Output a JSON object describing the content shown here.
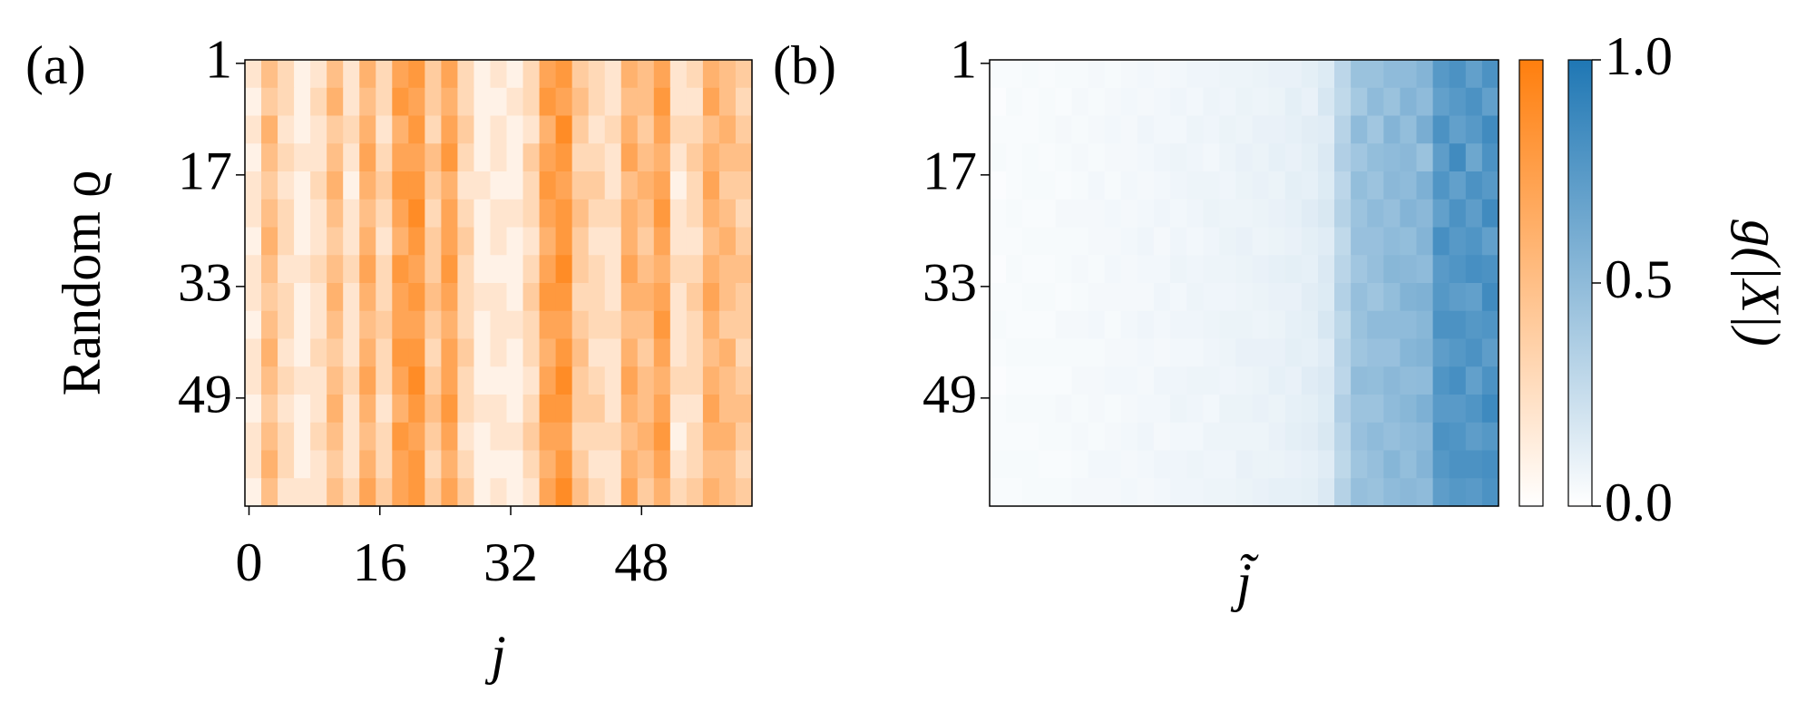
{
  "chart_data": [
    {
      "type": "heatmap",
      "panel_label": "(a)",
      "xlabel": "j",
      "ylabel": "Random ϱ",
      "xlim": [
        -0.5,
        61.5
      ],
      "ylim": [
        0.5,
        64.5
      ],
      "xticks": [
        0,
        16,
        32,
        48
      ],
      "yticks": [
        1,
        17,
        33,
        49
      ],
      "clim": [
        0,
        1
      ],
      "colors": [
        "#ffffff",
        "#ff7f0e"
      ],
      "values": [
        [
          0.2,
          0.5,
          0.3,
          0.1,
          0.2,
          0.5,
          0.2,
          0.6,
          0.3,
          0.7,
          0.8,
          0.4,
          0.7,
          0.3,
          0.1,
          0.2,
          0.1,
          0.3,
          0.7,
          0.8,
          0.4,
          0.3,
          0.2,
          0.6,
          0.5,
          0.7,
          0.2,
          0.3,
          0.6,
          0.5,
          0.4
        ],
        [
          0.1,
          0.4,
          0.3,
          0.1,
          0.3,
          0.6,
          0.2,
          0.5,
          0.3,
          0.8,
          0.7,
          0.4,
          0.6,
          0.3,
          0.1,
          0.1,
          0.2,
          0.3,
          0.8,
          0.7,
          0.5,
          0.3,
          0.2,
          0.5,
          0.5,
          0.8,
          0.2,
          0.2,
          0.7,
          0.5,
          0.3
        ],
        [
          0.2,
          0.6,
          0.2,
          0.1,
          0.2,
          0.4,
          0.3,
          0.6,
          0.2,
          0.6,
          0.8,
          0.3,
          0.7,
          0.4,
          0.1,
          0.2,
          0.1,
          0.2,
          0.6,
          0.9,
          0.4,
          0.2,
          0.3,
          0.6,
          0.4,
          0.7,
          0.3,
          0.3,
          0.5,
          0.6,
          0.4
        ],
        [
          0.1,
          0.5,
          0.3,
          0.2,
          0.2,
          0.5,
          0.2,
          0.7,
          0.3,
          0.7,
          0.7,
          0.5,
          0.8,
          0.3,
          0.1,
          0.2,
          0.1,
          0.4,
          0.7,
          0.8,
          0.3,
          0.3,
          0.2,
          0.7,
          0.5,
          0.6,
          0.2,
          0.4,
          0.6,
          0.5,
          0.5
        ],
        [
          0.2,
          0.4,
          0.2,
          0.1,
          0.3,
          0.6,
          0.1,
          0.6,
          0.4,
          0.8,
          0.8,
          0.4,
          0.6,
          0.2,
          0.2,
          0.1,
          0.1,
          0.3,
          0.8,
          0.7,
          0.4,
          0.4,
          0.2,
          0.5,
          0.6,
          0.7,
          0.1,
          0.3,
          0.7,
          0.4,
          0.4
        ],
        [
          0.2,
          0.5,
          0.3,
          0.1,
          0.2,
          0.5,
          0.2,
          0.5,
          0.3,
          0.7,
          0.9,
          0.3,
          0.7,
          0.3,
          0.1,
          0.2,
          0.2,
          0.3,
          0.7,
          0.8,
          0.5,
          0.3,
          0.3,
          0.6,
          0.5,
          0.8,
          0.2,
          0.3,
          0.6,
          0.5,
          0.3
        ],
        [
          0.1,
          0.6,
          0.3,
          0.1,
          0.2,
          0.4,
          0.2,
          0.6,
          0.2,
          0.6,
          0.8,
          0.4,
          0.7,
          0.4,
          0.1,
          0.2,
          0.1,
          0.2,
          0.6,
          0.8,
          0.4,
          0.2,
          0.2,
          0.6,
          0.4,
          0.7,
          0.2,
          0.2,
          0.5,
          0.6,
          0.4
        ],
        [
          0.2,
          0.5,
          0.2,
          0.2,
          0.3,
          0.5,
          0.3,
          0.7,
          0.3,
          0.8,
          0.7,
          0.4,
          0.8,
          0.3,
          0.1,
          0.1,
          0.1,
          0.3,
          0.7,
          0.9,
          0.4,
          0.3,
          0.2,
          0.7,
          0.5,
          0.6,
          0.3,
          0.3,
          0.6,
          0.5,
          0.5
        ],
        [
          0.2,
          0.4,
          0.3,
          0.1,
          0.2,
          0.6,
          0.2,
          0.6,
          0.3,
          0.7,
          0.8,
          0.5,
          0.7,
          0.3,
          0.2,
          0.2,
          0.1,
          0.4,
          0.8,
          0.8,
          0.3,
          0.3,
          0.2,
          0.6,
          0.6,
          0.7,
          0.2,
          0.4,
          0.7,
          0.5,
          0.4
        ],
        [
          0.1,
          0.5,
          0.3,
          0.1,
          0.2,
          0.5,
          0.2,
          0.5,
          0.4,
          0.7,
          0.7,
          0.4,
          0.6,
          0.3,
          0.1,
          0.2,
          0.2,
          0.3,
          0.7,
          0.7,
          0.4,
          0.3,
          0.3,
          0.5,
          0.5,
          0.8,
          0.2,
          0.3,
          0.6,
          0.4,
          0.4
        ],
        [
          0.2,
          0.6,
          0.2,
          0.1,
          0.3,
          0.4,
          0.2,
          0.6,
          0.3,
          0.8,
          0.8,
          0.3,
          0.7,
          0.4,
          0.1,
          0.2,
          0.1,
          0.3,
          0.6,
          0.8,
          0.5,
          0.2,
          0.2,
          0.6,
          0.4,
          0.7,
          0.2,
          0.3,
          0.5,
          0.6,
          0.3
        ],
        [
          0.2,
          0.5,
          0.3,
          0.2,
          0.2,
          0.5,
          0.3,
          0.7,
          0.3,
          0.7,
          0.9,
          0.4,
          0.7,
          0.3,
          0.1,
          0.1,
          0.1,
          0.2,
          0.7,
          0.9,
          0.4,
          0.3,
          0.2,
          0.7,
          0.5,
          0.6,
          0.3,
          0.3,
          0.6,
          0.5,
          0.4
        ],
        [
          0.1,
          0.4,
          0.2,
          0.1,
          0.2,
          0.6,
          0.2,
          0.6,
          0.2,
          0.6,
          0.8,
          0.5,
          0.8,
          0.3,
          0.2,
          0.2,
          0.1,
          0.3,
          0.8,
          0.8,
          0.4,
          0.4,
          0.2,
          0.6,
          0.5,
          0.7,
          0.2,
          0.2,
          0.7,
          0.5,
          0.5
        ],
        [
          0.2,
          0.5,
          0.3,
          0.1,
          0.3,
          0.5,
          0.2,
          0.5,
          0.3,
          0.8,
          0.7,
          0.4,
          0.7,
          0.2,
          0.1,
          0.2,
          0.2,
          0.4,
          0.7,
          0.7,
          0.3,
          0.3,
          0.3,
          0.5,
          0.6,
          0.8,
          0.1,
          0.3,
          0.6,
          0.6,
          0.4
        ],
        [
          0.2,
          0.6,
          0.3,
          0.1,
          0.2,
          0.4,
          0.2,
          0.6,
          0.3,
          0.7,
          0.8,
          0.3,
          0.6,
          0.3,
          0.1,
          0.1,
          0.1,
          0.3,
          0.6,
          0.8,
          0.4,
          0.2,
          0.2,
          0.6,
          0.5,
          0.7,
          0.2,
          0.3,
          0.5,
          0.5,
          0.3
        ],
        [
          0.1,
          0.5,
          0.2,
          0.2,
          0.2,
          0.5,
          0.3,
          0.7,
          0.4,
          0.7,
          0.8,
          0.4,
          0.7,
          0.4,
          0.1,
          0.2,
          0.1,
          0.2,
          0.7,
          0.9,
          0.5,
          0.3,
          0.2,
          0.7,
          0.4,
          0.6,
          0.3,
          0.4,
          0.6,
          0.5,
          0.4
        ]
      ],
      "colorbar": {
        "colors": [
          "#ffffff",
          "#ff7f0e"
        ],
        "clim": [
          0,
          1
        ]
      }
    },
    {
      "type": "heatmap",
      "panel_label": "(b)",
      "xlabel": "j̃",
      "xlim": [
        -0.5,
        61.5
      ],
      "ylim": [
        0.5,
        64.5
      ],
      "yticks": [
        1,
        17,
        33,
        49
      ],
      "clim": [
        0,
        1
      ],
      "colors": [
        "#ffffff",
        "#1f77b4"
      ],
      "values": [
        [
          0.03,
          0.03,
          0.04,
          0.03,
          0.04,
          0.04,
          0.05,
          0.04,
          0.05,
          0.06,
          0.05,
          0.06,
          0.07,
          0.07,
          0.08,
          0.08,
          0.09,
          0.1,
          0.1,
          0.12,
          0.15,
          0.3,
          0.45,
          0.45,
          0.5,
          0.5,
          0.55,
          0.75,
          0.8,
          0.7,
          0.8
        ],
        [
          0.02,
          0.04,
          0.03,
          0.04,
          0.03,
          0.05,
          0.04,
          0.05,
          0.06,
          0.05,
          0.06,
          0.07,
          0.06,
          0.08,
          0.07,
          0.09,
          0.08,
          0.09,
          0.12,
          0.1,
          0.18,
          0.28,
          0.4,
          0.5,
          0.45,
          0.55,
          0.5,
          0.7,
          0.75,
          0.8,
          0.7
        ],
        [
          0.03,
          0.03,
          0.03,
          0.04,
          0.05,
          0.04,
          0.05,
          0.06,
          0.05,
          0.07,
          0.06,
          0.06,
          0.08,
          0.07,
          0.09,
          0.08,
          0.1,
          0.1,
          0.11,
          0.13,
          0.14,
          0.32,
          0.5,
          0.42,
          0.55,
          0.48,
          0.6,
          0.8,
          0.7,
          0.75,
          0.85
        ],
        [
          0.04,
          0.03,
          0.04,
          0.03,
          0.04,
          0.05,
          0.04,
          0.05,
          0.05,
          0.06,
          0.07,
          0.08,
          0.07,
          0.06,
          0.08,
          0.1,
          0.09,
          0.11,
          0.1,
          0.12,
          0.16,
          0.35,
          0.42,
          0.48,
          0.5,
          0.52,
          0.45,
          0.72,
          0.85,
          0.65,
          0.8
        ],
        [
          0.02,
          0.03,
          0.04,
          0.04,
          0.03,
          0.04,
          0.06,
          0.04,
          0.06,
          0.05,
          0.06,
          0.07,
          0.08,
          0.08,
          0.07,
          0.09,
          0.1,
          0.09,
          0.12,
          0.11,
          0.15,
          0.3,
          0.48,
          0.44,
          0.52,
          0.5,
          0.58,
          0.78,
          0.7,
          0.8,
          0.75
        ],
        [
          0.03,
          0.04,
          0.03,
          0.03,
          0.05,
          0.05,
          0.05,
          0.06,
          0.05,
          0.06,
          0.07,
          0.06,
          0.07,
          0.09,
          0.08,
          0.08,
          0.09,
          0.1,
          0.11,
          0.14,
          0.17,
          0.33,
          0.44,
          0.5,
          0.47,
          0.55,
          0.52,
          0.7,
          0.8,
          0.72,
          0.85
        ],
        [
          0.03,
          0.03,
          0.04,
          0.04,
          0.04,
          0.04,
          0.05,
          0.05,
          0.06,
          0.07,
          0.05,
          0.07,
          0.06,
          0.07,
          0.09,
          0.1,
          0.08,
          0.09,
          0.1,
          0.12,
          0.14,
          0.28,
          0.46,
          0.46,
          0.5,
          0.48,
          0.55,
          0.82,
          0.75,
          0.78,
          0.7
        ],
        [
          0.02,
          0.04,
          0.03,
          0.03,
          0.04,
          0.05,
          0.04,
          0.06,
          0.05,
          0.06,
          0.06,
          0.08,
          0.07,
          0.08,
          0.08,
          0.09,
          0.1,
          0.11,
          0.12,
          0.11,
          0.16,
          0.31,
          0.42,
          0.47,
          0.53,
          0.52,
          0.5,
          0.74,
          0.78,
          0.82,
          0.8
        ],
        [
          0.03,
          0.03,
          0.04,
          0.04,
          0.03,
          0.04,
          0.05,
          0.05,
          0.05,
          0.05,
          0.07,
          0.06,
          0.08,
          0.07,
          0.07,
          0.08,
          0.09,
          0.1,
          0.1,
          0.13,
          0.15,
          0.34,
          0.47,
          0.43,
          0.48,
          0.56,
          0.57,
          0.76,
          0.72,
          0.7,
          0.85
        ],
        [
          0.04,
          0.03,
          0.03,
          0.03,
          0.05,
          0.05,
          0.06,
          0.04,
          0.06,
          0.07,
          0.06,
          0.07,
          0.07,
          0.08,
          0.09,
          0.09,
          0.08,
          0.09,
          0.11,
          0.12,
          0.18,
          0.29,
          0.45,
          0.5,
          0.5,
          0.5,
          0.53,
          0.8,
          0.8,
          0.76,
          0.78
        ],
        [
          0.03,
          0.04,
          0.04,
          0.04,
          0.04,
          0.04,
          0.04,
          0.05,
          0.05,
          0.06,
          0.05,
          0.06,
          0.06,
          0.07,
          0.08,
          0.1,
          0.1,
          0.1,
          0.12,
          0.11,
          0.14,
          0.32,
          0.43,
          0.46,
          0.46,
          0.54,
          0.56,
          0.72,
          0.76,
          0.8,
          0.72
        ],
        [
          0.02,
          0.03,
          0.03,
          0.03,
          0.03,
          0.05,
          0.05,
          0.06,
          0.06,
          0.05,
          0.07,
          0.07,
          0.08,
          0.08,
          0.07,
          0.08,
          0.09,
          0.11,
          0.1,
          0.14,
          0.16,
          0.3,
          0.49,
          0.48,
          0.52,
          0.49,
          0.5,
          0.78,
          0.82,
          0.7,
          0.8
        ],
        [
          0.03,
          0.04,
          0.04,
          0.04,
          0.05,
          0.04,
          0.05,
          0.04,
          0.05,
          0.06,
          0.06,
          0.08,
          0.07,
          0.06,
          0.09,
          0.09,
          0.1,
          0.09,
          0.11,
          0.12,
          0.15,
          0.35,
          0.44,
          0.44,
          0.5,
          0.53,
          0.58,
          0.74,
          0.74,
          0.78,
          0.86
        ],
        [
          0.03,
          0.03,
          0.03,
          0.04,
          0.04,
          0.05,
          0.04,
          0.05,
          0.06,
          0.07,
          0.05,
          0.06,
          0.06,
          0.08,
          0.08,
          0.08,
          0.08,
          0.1,
          0.12,
          0.13,
          0.17,
          0.31,
          0.46,
          0.5,
          0.47,
          0.5,
          0.52,
          0.8,
          0.78,
          0.72,
          0.76
        ],
        [
          0.04,
          0.04,
          0.04,
          0.03,
          0.03,
          0.04,
          0.06,
          0.06,
          0.05,
          0.06,
          0.07,
          0.07,
          0.08,
          0.07,
          0.07,
          0.1,
          0.09,
          0.09,
          0.1,
          0.11,
          0.14,
          0.29,
          0.43,
          0.47,
          0.54,
          0.48,
          0.55,
          0.76,
          0.8,
          0.8,
          0.82
        ],
        [
          0.03,
          0.03,
          0.04,
          0.04,
          0.04,
          0.05,
          0.05,
          0.05,
          0.06,
          0.05,
          0.06,
          0.07,
          0.07,
          0.08,
          0.08,
          0.09,
          0.1,
          0.11,
          0.11,
          0.12,
          0.16,
          0.33,
          0.47,
          0.45,
          0.5,
          0.52,
          0.5,
          0.72,
          0.76,
          0.74,
          0.8
        ]
      ],
      "colorbar": {
        "colors": [
          "#ffffff",
          "#1f77b4"
        ],
        "clim": [
          0,
          1
        ],
        "label": "g(|X|)",
        "ticks": [
          {
            "value": 0,
            "label": "0.0"
          },
          0.5,
          {
            "value": 1,
            "label": "1.0"
          }
        ]
      }
    }
  ]
}
